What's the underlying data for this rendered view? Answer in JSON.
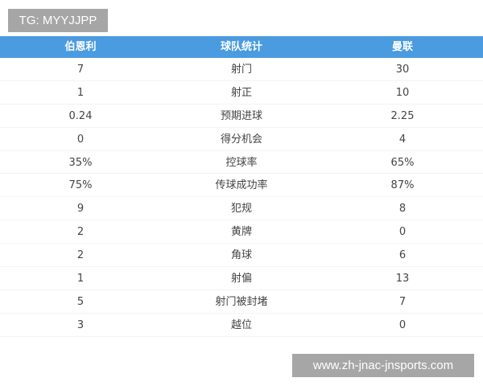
{
  "tag_label": "TG: MYYJJPP",
  "watermark": "www.zh-jnac-jnsports.com",
  "colors": {
    "header_bg": "#4a9be0",
    "header_text": "#ffffff"
  },
  "table": {
    "headers": [
      "伯恩利",
      "球队统计",
      "曼联"
    ],
    "rows": [
      [
        "7",
        "射门",
        "30"
      ],
      [
        "1",
        "射正",
        "10"
      ],
      [
        "0.24",
        "预期进球",
        "2.25"
      ],
      [
        "0",
        "得分机会",
        "4"
      ],
      [
        "35%",
        "控球率",
        "65%"
      ],
      [
        "75%",
        "传球成功率",
        "87%"
      ],
      [
        "9",
        "犯规",
        "8"
      ],
      [
        "2",
        "黄牌",
        "0"
      ],
      [
        "2",
        "角球",
        "6"
      ],
      [
        "1",
        "射偏",
        "13"
      ],
      [
        "5",
        "射门被封堵",
        "7"
      ],
      [
        "3",
        "越位",
        "0"
      ]
    ]
  }
}
